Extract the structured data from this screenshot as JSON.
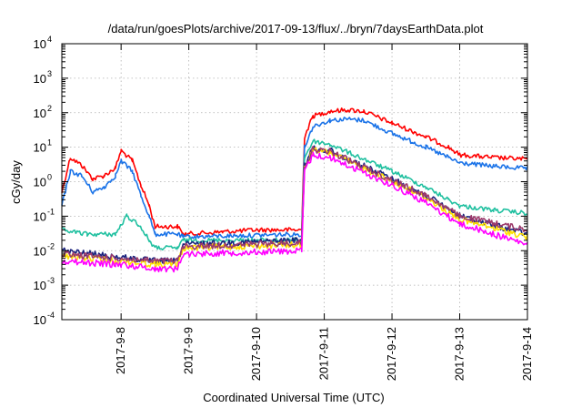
{
  "chart_data": {
    "type": "line",
    "title": "/data/run/goesPlots/archive/2017-09-13/flux/../bryn/7daysEarthData.plot",
    "xlabel": "Coordinated Universal Time (UTC)",
    "ylabel": "cGy/day",
    "y_scale": "log",
    "ylim": [
      0.0001,
      10000
    ],
    "xlim": [
      "2017-09-07T03:00",
      "2017-09-14T00:00"
    ],
    "x_ticks": [
      "2017-9-8",
      "2017-9-9",
      "2017-9-10",
      "2017-9-11",
      "2017-9-12",
      "2017-9-13",
      "2017-9-14"
    ],
    "y_ticks": [
      {
        "base": "10",
        "exp": "-4",
        "value": 0.0001
      },
      {
        "base": "10",
        "exp": "-3",
        "value": 0.001
      },
      {
        "base": "10",
        "exp": "-2",
        "value": 0.01
      },
      {
        "base": "10",
        "exp": "-1",
        "value": 0.1
      },
      {
        "base": "10",
        "exp": "0",
        "value": 1
      },
      {
        "base": "10",
        "exp": "1",
        "value": 10
      },
      {
        "base": "10",
        "exp": "2",
        "value": 100
      },
      {
        "base": "10",
        "exp": "3",
        "value": 1000
      },
      {
        "base": "10",
        "exp": "4",
        "value": 10000
      }
    ],
    "grid": true,
    "series": [
      {
        "color": "#ff0000",
        "points": [
          [
            "2017-09-07T03:00",
            0.5
          ],
          [
            "2017-09-07T06:00",
            5
          ],
          [
            "2017-09-07T10:00",
            3
          ],
          [
            "2017-09-07T14:00",
            1.2
          ],
          [
            "2017-09-07T18:00",
            1.5
          ],
          [
            "2017-09-07T22:00",
            2.5
          ],
          [
            "2017-09-08T00:00",
            8
          ],
          [
            "2017-09-08T04:00",
            4
          ],
          [
            "2017-09-08T07:00",
            0.8
          ],
          [
            "2017-09-08T10:00",
            0.2
          ],
          [
            "2017-09-08T12:00",
            0.05
          ],
          [
            "2017-09-08T18:00",
            0.05
          ],
          [
            "2017-09-08T20:00",
            0.05
          ],
          [
            "2017-09-08T22:00",
            0.03
          ],
          [
            "2017-09-09T12:00",
            0.035
          ],
          [
            "2017-09-10T00:00",
            0.04
          ],
          [
            "2017-09-10T16:00",
            0.04
          ],
          [
            "2017-09-10T17:00",
            20
          ],
          [
            "2017-09-10T20:00",
            80
          ],
          [
            "2017-09-11T02:00",
            110
          ],
          [
            "2017-09-11T08:00",
            120
          ],
          [
            "2017-09-11T14:00",
            110
          ],
          [
            "2017-09-12T00:00",
            50
          ],
          [
            "2017-09-12T12:00",
            20
          ],
          [
            "2017-09-12T20:00",
            10
          ],
          [
            "2017-09-13T00:00",
            6
          ],
          [
            "2017-09-13T12:00",
            5
          ],
          [
            "2017-09-14T00:00",
            4.5
          ]
        ]
      },
      {
        "color": "#1a73e8",
        "points": [
          [
            "2017-09-07T03:00",
            0.2
          ],
          [
            "2017-09-07T06:00",
            2
          ],
          [
            "2017-09-07T10:00",
            1.5
          ],
          [
            "2017-09-07T14:00",
            0.5
          ],
          [
            "2017-09-07T18:00",
            0.7
          ],
          [
            "2017-09-07T22:00",
            1.5
          ],
          [
            "2017-09-08T00:00",
            4
          ],
          [
            "2017-09-08T04:00",
            2
          ],
          [
            "2017-09-08T07:00",
            0.4
          ],
          [
            "2017-09-08T10:00",
            0.1
          ],
          [
            "2017-09-08T12:00",
            0.03
          ],
          [
            "2017-09-08T20:00",
            0.03
          ],
          [
            "2017-09-08T22:00",
            0.025
          ],
          [
            "2017-09-10T16:00",
            0.03
          ],
          [
            "2017-09-10T17:00",
            10
          ],
          [
            "2017-09-10T20:00",
            40
          ],
          [
            "2017-09-11T02:00",
            60
          ],
          [
            "2017-09-11T08:00",
            65
          ],
          [
            "2017-09-11T14:00",
            60
          ],
          [
            "2017-09-12T00:00",
            25
          ],
          [
            "2017-09-12T12:00",
            10
          ],
          [
            "2017-09-12T20:00",
            5
          ],
          [
            "2017-09-13T00:00",
            3.5
          ],
          [
            "2017-09-13T12:00",
            2.8
          ],
          [
            "2017-09-14T00:00",
            2.4
          ]
        ]
      },
      {
        "color": "#20c0a0",
        "points": [
          [
            "2017-09-07T03:00",
            0.04
          ],
          [
            "2017-09-07T12:00",
            0.03
          ],
          [
            "2017-09-07T22:00",
            0.03
          ],
          [
            "2017-09-08T02:00",
            0.1
          ],
          [
            "2017-09-08T06:00",
            0.06
          ],
          [
            "2017-09-08T10:00",
            0.02
          ],
          [
            "2017-09-08T12:00",
            0.012
          ],
          [
            "2017-09-08T20:00",
            0.012
          ],
          [
            "2017-09-08T22:00",
            0.02
          ],
          [
            "2017-09-10T16:00",
            0.02
          ],
          [
            "2017-09-10T17:00",
            5
          ],
          [
            "2017-09-10T20:00",
            15
          ],
          [
            "2017-09-11T02:00",
            12
          ],
          [
            "2017-09-12T00:00",
            2
          ],
          [
            "2017-09-12T12:00",
            0.7
          ],
          [
            "2017-09-12T20:00",
            0.3
          ],
          [
            "2017-09-13T00:00",
            0.2
          ],
          [
            "2017-09-13T12:00",
            0.15
          ],
          [
            "2017-09-14T00:00",
            0.12
          ]
        ]
      },
      {
        "color": "#1a237e",
        "points": [
          [
            "2017-09-07T03:00",
            0.01
          ],
          [
            "2017-09-08T12:00",
            0.005
          ],
          [
            "2017-09-08T20:00",
            0.005
          ],
          [
            "2017-09-08T22:00",
            0.015
          ],
          [
            "2017-09-10T16:00",
            0.02
          ],
          [
            "2017-09-10T17:00",
            3
          ],
          [
            "2017-09-10T20:00",
            9
          ],
          [
            "2017-09-11T02:00",
            8
          ],
          [
            "2017-09-12T00:00",
            1.2
          ],
          [
            "2017-09-12T12:00",
            0.4
          ],
          [
            "2017-09-13T00:00",
            0.1
          ],
          [
            "2017-09-14T00:00",
            0.03
          ]
        ]
      },
      {
        "color": "#ffe000",
        "points": [
          [
            "2017-09-07T03:00",
            0.007
          ],
          [
            "2017-09-08T12:00",
            0.004
          ],
          [
            "2017-09-08T20:00",
            0.004
          ],
          [
            "2017-09-08T22:00",
            0.012
          ],
          [
            "2017-09-10T16:00",
            0.015
          ],
          [
            "2017-09-10T17:00",
            2.5
          ],
          [
            "2017-09-10T20:00",
            8
          ],
          [
            "2017-09-11T02:00",
            7
          ],
          [
            "2017-09-12T00:00",
            1
          ],
          [
            "2017-09-12T12:00",
            0.35
          ],
          [
            "2017-09-13T00:00",
            0.08
          ],
          [
            "2017-09-14T00:00",
            0.025
          ]
        ]
      },
      {
        "color": "#9c3a6b",
        "points": [
          [
            "2017-09-07T03:00",
            0.008
          ],
          [
            "2017-09-08T12:00",
            0.005
          ],
          [
            "2017-09-08T20:00",
            0.005
          ],
          [
            "2017-09-08T22:00",
            0.013
          ],
          [
            "2017-09-10T16:00",
            0.017
          ],
          [
            "2017-09-10T17:00",
            2.8
          ],
          [
            "2017-09-10T20:00",
            8.5
          ],
          [
            "2017-09-11T02:00",
            7.5
          ],
          [
            "2017-09-12T00:00",
            1.1
          ],
          [
            "2017-09-12T12:00",
            0.4
          ],
          [
            "2017-09-13T00:00",
            0.1
          ],
          [
            "2017-09-14T00:00",
            0.04
          ]
        ]
      },
      {
        "color": "#ff00ff",
        "points": [
          [
            "2017-09-07T03:00",
            0.005
          ],
          [
            "2017-09-07T22:00",
            0.004
          ],
          [
            "2017-09-08T00:00",
            0.004
          ],
          [
            "2017-09-08T12:00",
            0.003
          ],
          [
            "2017-09-08T20:00",
            0.003
          ],
          [
            "2017-09-08T22:00",
            0.008
          ],
          [
            "2017-09-10T16:00",
            0.01
          ],
          [
            "2017-09-10T17:00",
            2
          ],
          [
            "2017-09-10T20:00",
            6
          ],
          [
            "2017-09-11T02:00",
            5
          ],
          [
            "2017-09-12T00:00",
            0.8
          ],
          [
            "2017-09-12T12:00",
            0.25
          ],
          [
            "2017-09-13T00:00",
            0.06
          ],
          [
            "2017-09-14T00:00",
            0.015
          ]
        ]
      }
    ]
  }
}
